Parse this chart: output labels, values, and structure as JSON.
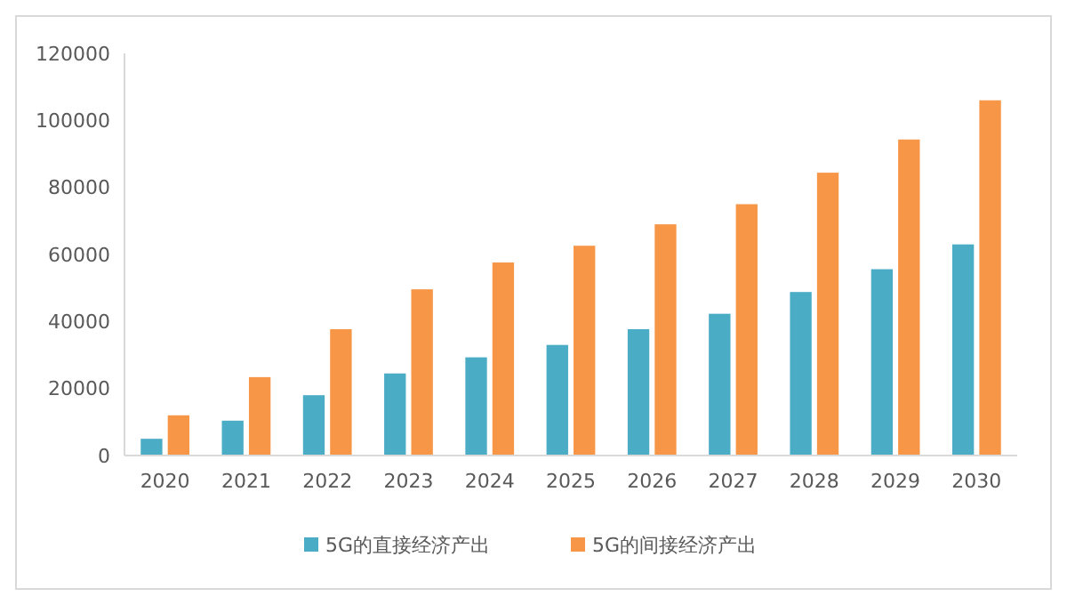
{
  "chart_data": {
    "type": "bar",
    "categories": [
      "2020",
      "2021",
      "2022",
      "2023",
      "2024",
      "2025",
      "2026",
      "2027",
      "2028",
      "2029",
      "2030"
    ],
    "series": [
      {
        "name": "5G的直接经济产出",
        "color": "#4bacc6",
        "values": [
          5000,
          10400,
          18000,
          24500,
          29300,
          33000,
          37700,
          42300,
          48800,
          55600,
          63000
        ]
      },
      {
        "name": "5G的间接经济产出",
        "color": "#f79646",
        "values": [
          12000,
          23400,
          37700,
          49600,
          57600,
          62600,
          69000,
          75000,
          84400,
          94300,
          106000
        ]
      }
    ],
    "ylim": [
      0,
      120000
    ],
    "yticks": [
      0,
      20000,
      40000,
      60000,
      80000,
      100000,
      120000
    ],
    "grid": false,
    "legend": "bottom"
  }
}
